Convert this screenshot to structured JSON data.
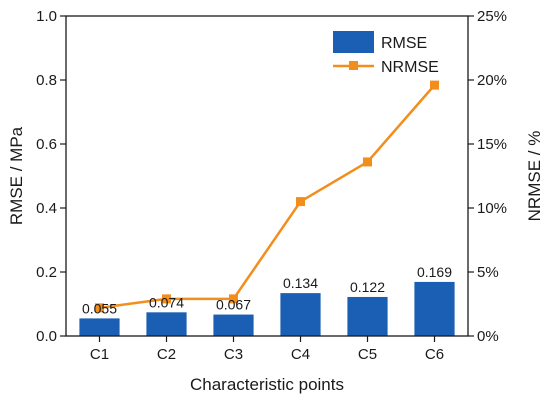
{
  "chart_data": {
    "type": "bar",
    "categories": [
      "C1",
      "C2",
      "C3",
      "C4",
      "C5",
      "C6"
    ],
    "series": [
      {
        "name": "RMSE",
        "type": "bar",
        "axis": "left",
        "color": "#1a5fb4",
        "values": [
          0.055,
          0.074,
          0.067,
          0.134,
          0.122,
          0.169
        ],
        "value_labels": [
          "0.055",
          "0.074",
          "0.067",
          "0.134",
          "0.122",
          "0.169"
        ]
      },
      {
        "name": "NRMSE",
        "type": "line",
        "marker": "square",
        "axis": "right",
        "color": "#f28e1c",
        "values": [
          2.2,
          2.9,
          2.9,
          10.5,
          13.6,
          19.6
        ]
      }
    ],
    "xlabel": "Characteristic points",
    "ylabel": "RMSE / MPa",
    "y2label": "NRMSE / %",
    "ylim": [
      0,
      1.0
    ],
    "y2lim": [
      0,
      25
    ],
    "yticks": [
      "0.0",
      "0.2",
      "0.4",
      "0.6",
      "0.8",
      "1.0"
    ],
    "y2ticks": [
      "0%",
      "5%",
      "10%",
      "15%",
      "20%",
      "25%"
    ],
    "legend_position": "top-right",
    "grid": false
  }
}
